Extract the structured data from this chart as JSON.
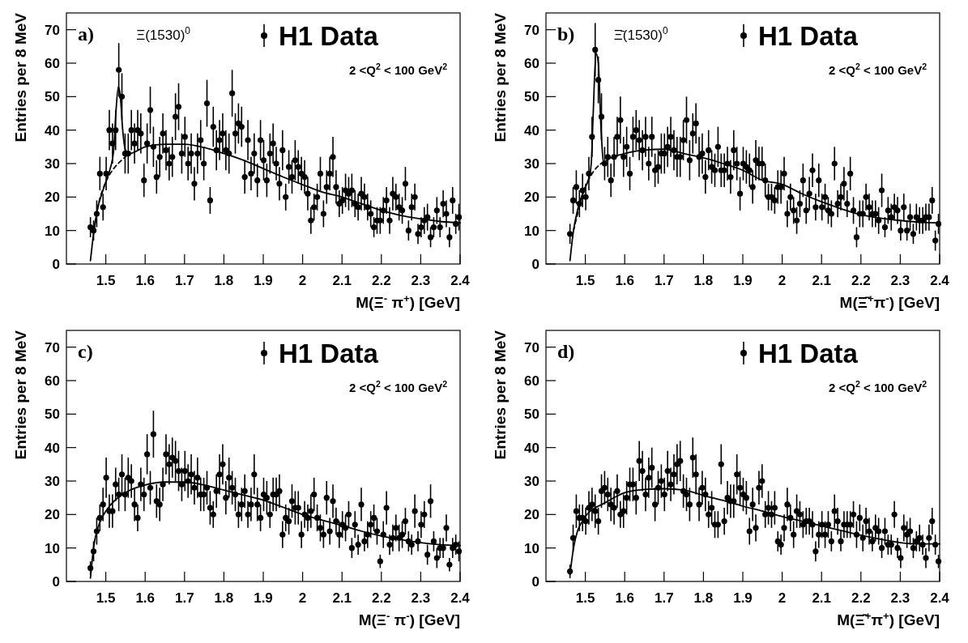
{
  "chart_data": [
    {
      "type": "scatter",
      "title": "a)",
      "xlabel": "M(Ξ$^{-}$ π$^{+}$) [GeV]",
      "ylabel": "Entries per 8 MeV",
      "xlim": [
        1.4,
        2.4
      ],
      "ylim": [
        0,
        75
      ],
      "xticks": [
        1.5,
        1.6,
        1.7,
        1.8,
        1.9,
        2,
        2.1,
        2.2,
        2.3,
        2.4
      ],
      "yticks": [
        0,
        10,
        20,
        30,
        40,
        50,
        60,
        70
      ],
      "legend": "top right",
      "marker": "circle",
      "grid": false,
      "annotations": [
        {
          "text": "Ξ(1530)$^{0}$",
          "x": 1.532,
          "y": 67
        },
        "2 <Q$^{2}$ < 100 GeV$^{2}$"
      ],
      "x": [
        1.461,
        1.469,
        1.477,
        1.485,
        1.493,
        1.501,
        1.509,
        1.517,
        1.525,
        1.533,
        1.541,
        1.549,
        1.557,
        1.565,
        1.573,
        1.581,
        1.589,
        1.597,
        1.605,
        1.613,
        1.621,
        1.629,
        1.637,
        1.645,
        1.653,
        1.661,
        1.669,
        1.677,
        1.685,
        1.693,
        1.701,
        1.709,
        1.717,
        1.725,
        1.733,
        1.741,
        1.749,
        1.757,
        1.765,
        1.773,
        1.781,
        1.789,
        1.797,
        1.805,
        1.813,
        1.821,
        1.829,
        1.837,
        1.845,
        1.853,
        1.861,
        1.869,
        1.877,
        1.885,
        1.893,
        1.901,
        1.909,
        1.917,
        1.925,
        1.933,
        1.941,
        1.949,
        1.957,
        1.965,
        1.973,
        1.981,
        1.989,
        1.997,
        2.005,
        2.013,
        2.021,
        2.029,
        2.037,
        2.045,
        2.053,
        2.061,
        2.069,
        2.077,
        2.085,
        2.093,
        2.101,
        2.109,
        2.117,
        2.125,
        2.133,
        2.141,
        2.149,
        2.157,
        2.165,
        2.173,
        2.181,
        2.189,
        2.197,
        2.205,
        2.213,
        2.221,
        2.229,
        2.237,
        2.245,
        2.253,
        2.261,
        2.269,
        2.277,
        2.285,
        2.293,
        2.301,
        2.309,
        2.317,
        2.325,
        2.333,
        2.341,
        2.349,
        2.357,
        2.365,
        2.373,
        2.381,
        2.389,
        2.397
      ],
      "series": [
        {
          "name": "H1 Data",
          "color": "#000000",
          "values": [
            11,
            10,
            15,
            27,
            17,
            27,
            40,
            36,
            40,
            58,
            50,
            33,
            33,
            40,
            36,
            40,
            39,
            25,
            36,
            46,
            35,
            26,
            32,
            39,
            34,
            30,
            32,
            44,
            47,
            33,
            38,
            30,
            33,
            24,
            33,
            37,
            30,
            48,
            19,
            41,
            34,
            37,
            39,
            34,
            33,
            51,
            39,
            42,
            41,
            26,
            37,
            27,
            33,
            25,
            37,
            31,
            25,
            33,
            36,
            30,
            24,
            34,
            20,
            29,
            26,
            31,
            29,
            27,
            26,
            21,
            13,
            17,
            20,
            27,
            15,
            23,
            27,
            32,
            23,
            18,
            19,
            22,
            21,
            22,
            18,
            17,
            21,
            20,
            17,
            15,
            11,
            13,
            13,
            16,
            19,
            13,
            21,
            20,
            17,
            16,
            24,
            10,
            17,
            20,
            9,
            11,
            13,
            14,
            8,
            11,
            16,
            11,
            18,
            15,
            8,
            19,
            12,
            14
          ],
          "errors": [
            3,
            3,
            4,
            5,
            4,
            5,
            6,
            6,
            6,
            8,
            7,
            6,
            6,
            6,
            6,
            6,
            6,
            5,
            6,
            7,
            6,
            5,
            6,
            6,
            6,
            5,
            6,
            7,
            7,
            6,
            6,
            5,
            6,
            5,
            6,
            6,
            5,
            7,
            4,
            6,
            6,
            6,
            6,
            6,
            6,
            7,
            6,
            6,
            6,
            5,
            6,
            5,
            6,
            5,
            6,
            6,
            5,
            6,
            6,
            5,
            5,
            6,
            4,
            5,
            5,
            6,
            5,
            5,
            5,
            5,
            4,
            4,
            4,
            5,
            4,
            5,
            5,
            6,
            5,
            4,
            4,
            5,
            5,
            5,
            4,
            4,
            5,
            4,
            4,
            4,
            3,
            4,
            4,
            4,
            4,
            4,
            5,
            4,
            4,
            4,
            5,
            3,
            4,
            4,
            3,
            3,
            4,
            4,
            3,
            3,
            4,
            3,
            4,
            4,
            3,
            4,
            3,
            4
          ]
        },
        {
          "type": "line",
          "marker": "none",
          "color": "#000000",
          "line_style": "solid",
          "x": [
            1.461,
            1.47,
            1.48,
            1.49,
            1.5,
            1.51,
            1.52,
            1.525,
            1.532,
            1.537,
            1.543,
            1.55,
            1.56,
            1.6,
            1.65,
            1.7,
            1.75,
            1.8,
            1.85,
            1.9,
            1.95,
            2.0,
            2.05,
            2.1,
            2.15,
            2.2,
            2.25,
            2.3,
            2.35,
            2.4
          ],
          "values": [
            1,
            10,
            17,
            21,
            24.5,
            28,
            34,
            44,
            53,
            50,
            40,
            34,
            33,
            35,
            35.8,
            35.8,
            34.8,
            33,
            31,
            28.5,
            26,
            23.7,
            21.5,
            20,
            18,
            16,
            14.5,
            13.5,
            12.7,
            12.3
          ]
        },
        {
          "type": "line",
          "marker": "none",
          "color": "#000000",
          "line_style": "dashed",
          "x": [
            1.47,
            1.48,
            1.5,
            1.52,
            1.54,
            1.56
          ],
          "values": [
            10,
            17,
            24.5,
            28.5,
            31,
            33
          ]
        }
      ]
    },
    {
      "type": "scatter",
      "title": "b)",
      "xlabel": "M(Ξ̄$^{+}$π$^{-}$) [GeV]",
      "ylabel": "Entries per 8 MeV",
      "xlim": [
        1.4,
        2.4
      ],
      "ylim": [
        0,
        75
      ],
      "xticks": [
        1.5,
        1.6,
        1.7,
        1.8,
        1.9,
        2,
        2.1,
        2.2,
        2.3,
        2.4
      ],
      "yticks": [
        0,
        10,
        20,
        30,
        40,
        50,
        60,
        70
      ],
      "legend": "top right",
      "marker": "circle",
      "grid": false,
      "annotations": [
        {
          "text": "Ξ̄(1530)$^{0}$",
          "x": 1.527,
          "y": 67
        },
        "2 <Q$^{2}$ < 100 GeV$^{2}$"
      ],
      "x": [
        1.461,
        1.469,
        1.477,
        1.485,
        1.493,
        1.501,
        1.509,
        1.517,
        1.525,
        1.533,
        1.541,
        1.549,
        1.557,
        1.565,
        1.573,
        1.581,
        1.589,
        1.597,
        1.605,
        1.613,
        1.621,
        1.629,
        1.637,
        1.645,
        1.653,
        1.661,
        1.669,
        1.677,
        1.685,
        1.693,
        1.701,
        1.709,
        1.717,
        1.725,
        1.733,
        1.741,
        1.749,
        1.757,
        1.765,
        1.773,
        1.781,
        1.789,
        1.797,
        1.805,
        1.813,
        1.821,
        1.829,
        1.837,
        1.845,
        1.853,
        1.861,
        1.869,
        1.877,
        1.885,
        1.893,
        1.901,
        1.909,
        1.917,
        1.925,
        1.933,
        1.941,
        1.949,
        1.957,
        1.965,
        1.973,
        1.981,
        1.989,
        1.997,
        2.005,
        2.013,
        2.021,
        2.029,
        2.037,
        2.045,
        2.053,
        2.061,
        2.069,
        2.077,
        2.085,
        2.093,
        2.101,
        2.109,
        2.117,
        2.125,
        2.133,
        2.141,
        2.149,
        2.157,
        2.165,
        2.173,
        2.181,
        2.189,
        2.197,
        2.205,
        2.213,
        2.221,
        2.229,
        2.237,
        2.245,
        2.253,
        2.261,
        2.269,
        2.277,
        2.285,
        2.293,
        2.301,
        2.309,
        2.317,
        2.325,
        2.333,
        2.341,
        2.349,
        2.357,
        2.365,
        2.373,
        2.381,
        2.389,
        2.397
      ],
      "series": [
        {
          "name": "H1 Data",
          "color": "#000000",
          "values": [
            9,
            19,
            23,
            18,
            22,
            20,
            27,
            38,
            64,
            55,
            44,
            30,
            32,
            25,
            32,
            38,
            43,
            32,
            35,
            27,
            38,
            40,
            37,
            34,
            38,
            30,
            38,
            28,
            29,
            33,
            33,
            35,
            38,
            34,
            32,
            32,
            37,
            43,
            31,
            39,
            42,
            32,
            33,
            26,
            34,
            29,
            28,
            35,
            28,
            28,
            30,
            26,
            34,
            30,
            21,
            30,
            29,
            28,
            23,
            31,
            30,
            30,
            25,
            20,
            20,
            19,
            23,
            23,
            27,
            15,
            20,
            16,
            13,
            18,
            25,
            16,
            21,
            28,
            17,
            25,
            17,
            20,
            16,
            15,
            30,
            18,
            20,
            24,
            18,
            27,
            16,
            8,
            15,
            15,
            20,
            17,
            15,
            15,
            13,
            22,
            11,
            16,
            14,
            17,
            16,
            10,
            17,
            10,
            14,
            9,
            14,
            13,
            13,
            14,
            14,
            19,
            7,
            12
          ],
          "errors": [
            3,
            4,
            5,
            4,
            5,
            4,
            5,
            6,
            8,
            7,
            7,
            5,
            6,
            5,
            6,
            6,
            7,
            6,
            6,
            5,
            6,
            6,
            6,
            6,
            6,
            5,
            6,
            5,
            5,
            6,
            6,
            6,
            6,
            6,
            6,
            6,
            6,
            7,
            6,
            6,
            6,
            6,
            6,
            5,
            6,
            5,
            5,
            6,
            5,
            5,
            5,
            5,
            6,
            5,
            5,
            5,
            5,
            5,
            5,
            6,
            5,
            5,
            5,
            4,
            4,
            4,
            5,
            5,
            5,
            4,
            4,
            4,
            4,
            4,
            5,
            4,
            5,
            5,
            4,
            5,
            4,
            4,
            4,
            4,
            5,
            4,
            4,
            5,
            4,
            5,
            4,
            3,
            4,
            4,
            4,
            4,
            4,
            4,
            4,
            5,
            3,
            4,
            4,
            4,
            4,
            3,
            4,
            3,
            4,
            3,
            4,
            4,
            4,
            4,
            4,
            4,
            3,
            3
          ]
        },
        {
          "type": "line",
          "marker": "none",
          "color": "#000000",
          "line_style": "solid",
          "x": [
            1.461,
            1.47,
            1.48,
            1.49,
            1.5,
            1.51,
            1.515,
            1.52,
            1.527,
            1.533,
            1.54,
            1.547,
            1.555,
            1.6,
            1.65,
            1.7,
            1.75,
            1.8,
            1.85,
            1.9,
            1.95,
            2.0,
            2.05,
            2.1,
            2.15,
            2.2,
            2.25,
            2.3,
            2.35,
            2.4
          ],
          "values": [
            1,
            10,
            16,
            20,
            23,
            26,
            30,
            45,
            63,
            60,
            40,
            30,
            31,
            33,
            34,
            34.3,
            33,
            31.7,
            30,
            28,
            25,
            23.8,
            21,
            18.6,
            16.5,
            14.7,
            13.7,
            13,
            12.5,
            12.3
          ]
        },
        {
          "type": "line",
          "marker": "none",
          "color": "#000000",
          "line_style": "dashed",
          "x": [
            1.47,
            1.5,
            1.52,
            1.54,
            1.555
          ],
          "values": [
            10,
            23,
            27.5,
            30,
            31
          ]
        }
      ]
    },
    {
      "type": "scatter",
      "title": "c)",
      "xlabel": "M(Ξ$^{-}$ π$^{-}$) [GeV]",
      "ylabel": "Entries per 8 MeV",
      "xlim": [
        1.4,
        2.4
      ],
      "ylim": [
        0,
        75
      ],
      "xticks": [
        1.5,
        1.6,
        1.7,
        1.8,
        1.9,
        2,
        2.1,
        2.2,
        2.3,
        2.4
      ],
      "yticks": [
        0,
        10,
        20,
        30,
        40,
        50,
        60,
        70
      ],
      "legend": "top right",
      "marker": "circle",
      "grid": false,
      "annotations": [
        "2 <Q$^{2}$ < 100 GeV$^{2}$"
      ],
      "x": [
        1.461,
        1.469,
        1.477,
        1.485,
        1.493,
        1.501,
        1.509,
        1.517,
        1.525,
        1.533,
        1.541,
        1.549,
        1.557,
        1.565,
        1.573,
        1.581,
        1.589,
        1.597,
        1.605,
        1.613,
        1.621,
        1.629,
        1.637,
        1.645,
        1.653,
        1.661,
        1.669,
        1.677,
        1.685,
        1.693,
        1.701,
        1.709,
        1.717,
        1.725,
        1.733,
        1.741,
        1.749,
        1.757,
        1.765,
        1.773,
        1.781,
        1.789,
        1.797,
        1.805,
        1.813,
        1.821,
        1.829,
        1.837,
        1.845,
        1.853,
        1.861,
        1.869,
        1.877,
        1.885,
        1.893,
        1.901,
        1.909,
        1.917,
        1.925,
        1.933,
        1.941,
        1.949,
        1.957,
        1.965,
        1.973,
        1.981,
        1.989,
        1.997,
        2.005,
        2.013,
        2.021,
        2.029,
        2.037,
        2.045,
        2.053,
        2.061,
        2.069,
        2.077,
        2.085,
        2.093,
        2.101,
        2.109,
        2.117,
        2.125,
        2.133,
        2.141,
        2.149,
        2.157,
        2.165,
        2.173,
        2.181,
        2.189,
        2.197,
        2.205,
        2.213,
        2.221,
        2.229,
        2.237,
        2.245,
        2.253,
        2.261,
        2.269,
        2.277,
        2.285,
        2.293,
        2.301,
        2.309,
        2.317,
        2.325,
        2.333,
        2.341,
        2.349,
        2.357,
        2.365,
        2.373,
        2.381,
        2.389,
        2.397
      ],
      "series": [
        {
          "name": "H1 Data",
          "color": "#000000",
          "values": [
            4,
            9,
            15,
            19,
            23,
            31,
            21,
            21,
            29,
            26,
            32,
            26,
            31,
            30,
            23,
            19,
            29,
            26,
            38,
            28,
            44,
            24,
            23,
            29,
            38,
            35,
            37,
            36,
            33,
            29,
            33,
            30,
            32,
            28,
            31,
            26,
            26,
            28,
            22,
            20,
            27,
            32,
            35,
            25,
            31,
            28,
            26,
            20,
            23,
            27,
            20,
            23,
            32,
            23,
            19,
            26,
            25,
            20,
            26,
            26,
            27,
            14,
            19,
            18,
            24,
            22,
            22,
            14,
            20,
            19,
            21,
            26,
            19,
            16,
            14,
            25,
            15,
            24,
            18,
            14,
            17,
            16,
            20,
            10,
            17,
            11,
            23,
            12,
            14,
            17,
            19,
            15,
            6,
            14,
            22,
            11,
            13,
            16,
            13,
            14,
            18,
            12,
            11,
            21,
            12,
            17,
            20,
            8,
            24,
            12,
            7,
            10,
            10,
            16,
            5,
            10,
            11,
            9
          ],
          "errors": [
            2,
            3,
            4,
            4,
            5,
            6,
            5,
            5,
            5,
            5,
            6,
            5,
            6,
            5,
            5,
            4,
            5,
            5,
            6,
            5,
            7,
            5,
            5,
            5,
            6,
            6,
            6,
            6,
            6,
            5,
            6,
            5,
            6,
            5,
            6,
            5,
            5,
            5,
            5,
            4,
            5,
            6,
            6,
            5,
            6,
            5,
            5,
            4,
            5,
            5,
            4,
            5,
            6,
            5,
            4,
            5,
            5,
            4,
            5,
            5,
            5,
            4,
            4,
            4,
            5,
            5,
            5,
            4,
            4,
            4,
            5,
            5,
            4,
            4,
            4,
            5,
            4,
            5,
            4,
            4,
            4,
            4,
            4,
            3,
            4,
            3,
            5,
            3,
            4,
            4,
            4,
            4,
            2,
            4,
            5,
            3,
            4,
            4,
            4,
            4,
            4,
            3,
            3,
            5,
            3,
            4,
            4,
            3,
            5,
            3,
            3,
            3,
            3,
            4,
            2,
            3,
            3,
            3
          ]
        },
        {
          "type": "line",
          "marker": "none",
          "color": "#000000",
          "line_style": "solid",
          "x": [
            1.461,
            1.47,
            1.48,
            1.49,
            1.5,
            1.55,
            1.6,
            1.65,
            1.7,
            1.75,
            1.8,
            1.85,
            1.9,
            1.95,
            2.0,
            2.05,
            2.1,
            2.15,
            2.2,
            2.25,
            2.3,
            2.35,
            2.4
          ],
          "values": [
            1,
            11,
            16,
            19,
            21,
            26.5,
            28.8,
            29.7,
            29.7,
            28.8,
            27.3,
            25.8,
            24.3,
            22.2,
            20,
            18.3,
            16.7,
            15,
            13.6,
            12.5,
            11.6,
            11,
            10.8
          ]
        }
      ]
    },
    {
      "type": "scatter",
      "title": "d)",
      "xlabel": "M(Ξ̄$^{+}$π$^{+}$) [GeV]",
      "ylabel": "Entries per 8 MeV",
      "xlim": [
        1.4,
        2.4
      ],
      "ylim": [
        0,
        75
      ],
      "xticks": [
        1.5,
        1.6,
        1.7,
        1.8,
        1.9,
        2,
        2.1,
        2.2,
        2.3,
        2.4
      ],
      "yticks": [
        0,
        10,
        20,
        30,
        40,
        50,
        60,
        70
      ],
      "legend": "top right",
      "marker": "circle",
      "grid": false,
      "annotations": [
        "2 <Q$^{2}$ < 100 GeV$^{2}$"
      ],
      "x": [
        1.461,
        1.469,
        1.477,
        1.485,
        1.493,
        1.501,
        1.509,
        1.517,
        1.525,
        1.533,
        1.541,
        1.549,
        1.557,
        1.565,
        1.573,
        1.581,
        1.589,
        1.597,
        1.605,
        1.613,
        1.621,
        1.629,
        1.637,
        1.645,
        1.653,
        1.661,
        1.669,
        1.677,
        1.685,
        1.693,
        1.701,
        1.709,
        1.717,
        1.725,
        1.733,
        1.741,
        1.749,
        1.757,
        1.765,
        1.773,
        1.781,
        1.789,
        1.797,
        1.805,
        1.813,
        1.821,
        1.829,
        1.837,
        1.845,
        1.853,
        1.861,
        1.869,
        1.877,
        1.885,
        1.893,
        1.901,
        1.909,
        1.917,
        1.925,
        1.933,
        1.941,
        1.949,
        1.957,
        1.965,
        1.973,
        1.981,
        1.989,
        1.997,
        2.005,
        2.013,
        2.021,
        2.029,
        2.037,
        2.045,
        2.053,
        2.061,
        2.069,
        2.077,
        2.085,
        2.093,
        2.101,
        2.109,
        2.117,
        2.125,
        2.133,
        2.141,
        2.149,
        2.157,
        2.165,
        2.173,
        2.181,
        2.189,
        2.197,
        2.205,
        2.213,
        2.221,
        2.229,
        2.237,
        2.245,
        2.253,
        2.261,
        2.269,
        2.277,
        2.285,
        2.293,
        2.301,
        2.309,
        2.317,
        2.325,
        2.333,
        2.341,
        2.349,
        2.357,
        2.365,
        2.373,
        2.381,
        2.389,
        2.397
      ],
      "series": [
        {
          "name": "H1 Data",
          "color": "#000000",
          "values": [
            3,
            13,
            21,
            19,
            19,
            18,
            22,
            23,
            21,
            18,
            27,
            28,
            26,
            23,
            22,
            27,
            20,
            21,
            25,
            29,
            29,
            25,
            36,
            33,
            26,
            31,
            34,
            23,
            28,
            30,
            26,
            33,
            29,
            32,
            35,
            36,
            27,
            26,
            23,
            37,
            32,
            23,
            28,
            26,
            20,
            22,
            17,
            17,
            35,
            18,
            25,
            24,
            24,
            32,
            28,
            26,
            25,
            15,
            23,
            16,
            28,
            30,
            20,
            22,
            20,
            22,
            12,
            11,
            16,
            23,
            19,
            14,
            21,
            20,
            17,
            18,
            18,
            17,
            9,
            14,
            17,
            14,
            17,
            12,
            21,
            18,
            12,
            17,
            17,
            17,
            20,
            14,
            19,
            13,
            18,
            15,
            12,
            16,
            15,
            10,
            15,
            11,
            11,
            20,
            10,
            7,
            16,
            14,
            15,
            10,
            12,
            13,
            11,
            7,
            13,
            18,
            11,
            6
          ],
          "errors": [
            2,
            4,
            5,
            4,
            4,
            4,
            5,
            5,
            5,
            4,
            5,
            5,
            5,
            5,
            5,
            5,
            4,
            5,
            5,
            5,
            5,
            5,
            6,
            6,
            5,
            6,
            6,
            5,
            5,
            5,
            5,
            6,
            5,
            6,
            6,
            6,
            5,
            5,
            5,
            6,
            6,
            5,
            5,
            5,
            4,
            5,
            4,
            4,
            6,
            4,
            5,
            5,
            5,
            6,
            5,
            5,
            5,
            4,
            5,
            4,
            5,
            5,
            4,
            5,
            4,
            5,
            3,
            3,
            4,
            5,
            4,
            4,
            5,
            4,
            4,
            4,
            4,
            4,
            3,
            4,
            4,
            4,
            4,
            3,
            5,
            4,
            3,
            4,
            4,
            4,
            4,
            4,
            4,
            4,
            4,
            4,
            3,
            4,
            4,
            3,
            4,
            3,
            3,
            4,
            3,
            3,
            4,
            4,
            4,
            3,
            3,
            4,
            3,
            3,
            4,
            4,
            3,
            2
          ]
        },
        {
          "type": "line",
          "marker": "none",
          "color": "#000000",
          "line_style": "solid",
          "x": [
            1.461,
            1.47,
            1.48,
            1.49,
            1.5,
            1.55,
            1.6,
            1.65,
            1.7,
            1.75,
            1.8,
            1.85,
            1.9,
            1.95,
            2.0,
            2.05,
            2.1,
            2.15,
            2.2,
            2.25,
            2.3,
            2.35,
            2.4
          ],
          "values": [
            2,
            10,
            15,
            17.5,
            19.4,
            23.5,
            26.5,
            27.5,
            27.7,
            27.3,
            25.7,
            24.2,
            22.5,
            21,
            19.4,
            18,
            16.6,
            15.2,
            13.8,
            12.6,
            11.6,
            11.2,
            11.2
          ]
        }
      ]
    }
  ]
}
